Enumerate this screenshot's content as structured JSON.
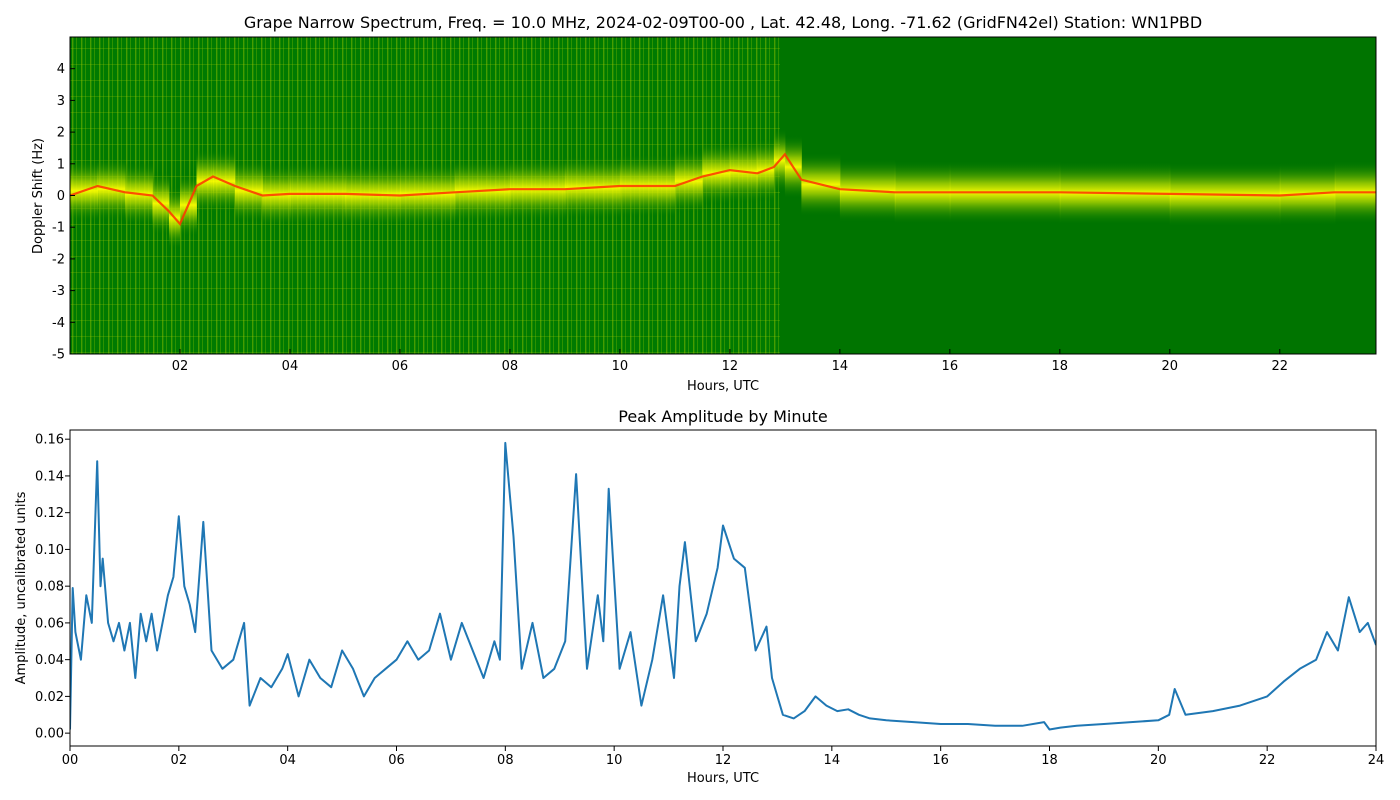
{
  "colors": {
    "spectrogram_base": "#007a00",
    "spectrogram_mid": "#b5d800",
    "spectrogram_high": "#ffff00",
    "spectrogram_peak": "#ff3300",
    "line": "#1f77b4"
  },
  "chart_data": [
    {
      "type": "heatmap",
      "title": "Grape Narrow Spectrum, Freq. = 10.0 MHz, 2024-02-09T00-00 , Lat.  42.48, Long. -71.62 (GridFN42el) Station: WN1PBD",
      "xlabel": "Hours, UTC",
      "ylabel": "Doppler Shift (Hz)",
      "xlim": [
        0,
        23.75
      ],
      "ylim": [
        -5,
        5
      ],
      "xticks": [
        2,
        4,
        6,
        8,
        10,
        12,
        14,
        16,
        18,
        20,
        22
      ],
      "xtick_labels": [
        "02",
        "04",
        "06",
        "08",
        "10",
        "12",
        "14",
        "16",
        "18",
        "20",
        "22"
      ],
      "yticks": [
        -5,
        -4,
        -3,
        -2,
        -1,
        0,
        1,
        2,
        3,
        4
      ],
      "ytick_labels": [
        "-5",
        "-4",
        "-3",
        "-2",
        "-1",
        "0",
        "1",
        "2",
        "3",
        "4"
      ],
      "carrier_trace": {
        "x": [
          0,
          0.5,
          1,
          1.5,
          1.8,
          2,
          2.3,
          2.6,
          3,
          3.5,
          4,
          5,
          6,
          7,
          8,
          9,
          10,
          11,
          11.5,
          12,
          12.5,
          12.8,
          13,
          13.3,
          14,
          15,
          16,
          18,
          20,
          22,
          23,
          23.75
        ],
        "y": [
          0,
          0.3,
          0.1,
          0.0,
          -0.5,
          -0.9,
          0.3,
          0.6,
          0.3,
          0.0,
          0.05,
          0.05,
          0.0,
          0.1,
          0.2,
          0.2,
          0.3,
          0.3,
          0.6,
          0.8,
          0.7,
          0.9,
          1.3,
          0.5,
          0.2,
          0.1,
          0.1,
          0.1,
          0.05,
          0.0,
          0.1,
          0.1
        ]
      },
      "band_edges": [
        -5,
        -1,
        1,
        5
      ]
    },
    {
      "type": "line",
      "title": "Peak Amplitude by Minute",
      "xlabel": "Hours, UTC",
      "ylabel": "Amplitude, uncalibrated units",
      "xlim": [
        0,
        24
      ],
      "ylim": [
        -0.007,
        0.165
      ],
      "xticks": [
        0,
        2,
        4,
        6,
        8,
        10,
        12,
        14,
        16,
        18,
        20,
        22,
        24
      ],
      "xtick_labels": [
        "00",
        "02",
        "04",
        "06",
        "08",
        "10",
        "12",
        "14",
        "16",
        "18",
        "20",
        "22",
        "24"
      ],
      "yticks": [
        0,
        0.02,
        0.04,
        0.06,
        0.08,
        0.1,
        0.12,
        0.14,
        0.16
      ],
      "ytick_labels": [
        "0.00",
        "0.02",
        "0.04",
        "0.06",
        "0.08",
        "0.10",
        "0.12",
        "0.14",
        "0.16"
      ],
      "x": [
        0,
        0.05,
        0.1,
        0.2,
        0.3,
        0.4,
        0.5,
        0.56,
        0.6,
        0.7,
        0.8,
        0.9,
        1.0,
        1.1,
        1.2,
        1.3,
        1.4,
        1.5,
        1.6,
        1.7,
        1.8,
        1.9,
        2.0,
        2.1,
        2.2,
        2.3,
        2.45,
        2.6,
        2.8,
        3.0,
        3.2,
        3.3,
        3.5,
        3.7,
        3.9,
        4.0,
        4.2,
        4.4,
        4.6,
        4.8,
        5.0,
        5.2,
        5.4,
        5.6,
        5.8,
        6.0,
        6.2,
        6.4,
        6.6,
        6.8,
        7.0,
        7.2,
        7.4,
        7.6,
        7.8,
        7.9,
        8.0,
        8.15,
        8.3,
        8.5,
        8.7,
        8.9,
        9.1,
        9.3,
        9.5,
        9.7,
        9.8,
        9.9,
        10.1,
        10.3,
        10.5,
        10.7,
        10.9,
        11.1,
        11.2,
        11.3,
        11.5,
        11.7,
        11.9,
        12.0,
        12.2,
        12.4,
        12.6,
        12.8,
        12.9,
        13.0,
        13.1,
        13.3,
        13.5,
        13.7,
        13.9,
        14.1,
        14.3,
        14.5,
        14.7,
        15.0,
        15.5,
        16.0,
        16.5,
        17.0,
        17.5,
        17.9,
        18.0,
        18.2,
        18.5,
        19.0,
        19.5,
        20.0,
        20.2,
        20.3,
        20.5,
        21.0,
        21.5,
        22.0,
        22.3,
        22.6,
        22.9,
        23.1,
        23.3,
        23.5,
        23.7,
        23.85,
        24.0
      ],
      "y": [
        0.002,
        0.079,
        0.055,
        0.04,
        0.075,
        0.06,
        0.148,
        0.08,
        0.095,
        0.06,
        0.05,
        0.06,
        0.045,
        0.06,
        0.03,
        0.065,
        0.05,
        0.065,
        0.045,
        0.06,
        0.075,
        0.085,
        0.118,
        0.08,
        0.07,
        0.055,
        0.115,
        0.045,
        0.035,
        0.04,
        0.06,
        0.015,
        0.03,
        0.025,
        0.035,
        0.043,
        0.02,
        0.04,
        0.03,
        0.025,
        0.045,
        0.035,
        0.02,
        0.03,
        0.035,
        0.04,
        0.05,
        0.04,
        0.045,
        0.065,
        0.04,
        0.06,
        0.045,
        0.03,
        0.05,
        0.04,
        0.158,
        0.107,
        0.035,
        0.06,
        0.03,
        0.035,
        0.05,
        0.141,
        0.035,
        0.075,
        0.05,
        0.133,
        0.035,
        0.055,
        0.015,
        0.04,
        0.075,
        0.03,
        0.08,
        0.104,
        0.05,
        0.065,
        0.09,
        0.113,
        0.095,
        0.09,
        0.045,
        0.058,
        0.03,
        0.02,
        0.01,
        0.008,
        0.012,
        0.02,
        0.015,
        0.012,
        0.013,
        0.01,
        0.008,
        0.007,
        0.006,
        0.005,
        0.005,
        0.004,
        0.004,
        0.006,
        0.002,
        0.003,
        0.004,
        0.005,
        0.006,
        0.007,
        0.01,
        0.024,
        0.01,
        0.012,
        0.015,
        0.02,
        0.028,
        0.035,
        0.04,
        0.055,
        0.045,
        0.074,
        0.055,
        0.06,
        0.048
      ]
    }
  ]
}
